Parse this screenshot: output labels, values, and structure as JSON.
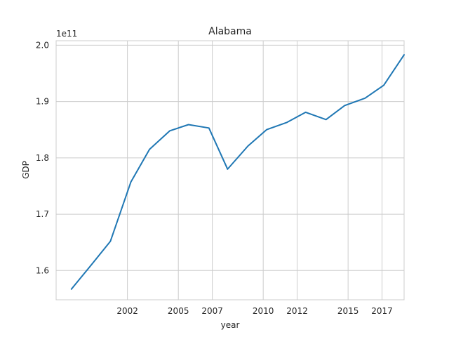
{
  "chart_data": {
    "type": "line",
    "title": "Alabama",
    "xlabel": "year",
    "ylabel": "GDP",
    "y_offset_label": "1e11",
    "grid": true,
    "xlim": [
      1997.8,
      2018.3
    ],
    "ylim": [
      1.548,
      2.008
    ],
    "xticks": [
      2002,
      2005,
      2007,
      2010,
      2012,
      2015,
      2017
    ],
    "xtick_labels": [
      "2002",
      "2005",
      "2007",
      "2010",
      "2012",
      "2015",
      "2017"
    ],
    "yticks": [
      1.6,
      1.7,
      1.8,
      1.9,
      2.0
    ],
    "ytick_labels": [
      "1.6",
      "1.7",
      "1.8",
      "1.9",
      "2.0"
    ],
    "series": [
      {
        "color": "#1f77b4",
        "x": [
          1998.7,
          1999.9,
          2001.0,
          2002.2,
          2003.3,
          2004.5,
          2005.6,
          2006.8,
          2007.9,
          2009.1,
          2010.2,
          2011.4,
          2012.5,
          2013.7,
          2014.8,
          2016.0,
          2017.1,
          2018.3
        ],
        "y": [
          1.567,
          1.611,
          1.652,
          1.757,
          1.815,
          1.848,
          1.859,
          1.853,
          1.78,
          1.821,
          1.85,
          1.863,
          1.881,
          1.868,
          1.893,
          1.906,
          1.929,
          1.983
        ]
      }
    ]
  }
}
